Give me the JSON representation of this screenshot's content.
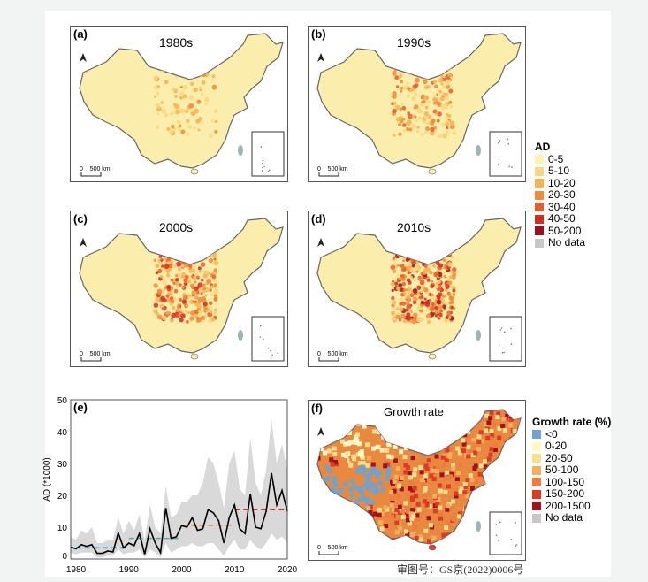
{
  "panels": [
    {
      "label": "(a)",
      "title": "1980s",
      "scale": "0    500 km",
      "level": 1
    },
    {
      "label": "(b)",
      "title": "1990s",
      "scale": "0    500 km",
      "level": 2
    },
    {
      "label": "(c)",
      "title": "2000s",
      "scale": "0    500 km",
      "level": 3
    },
    {
      "label": "(d)",
      "title": "2010s",
      "scale": "0    500 km",
      "level": 4
    }
  ],
  "growth_panel": {
    "label": "(f)",
    "title": "Growth rate",
    "scale": "0    500 km"
  },
  "ad_legend": {
    "title": "AD",
    "items": [
      {
        "label": "0-5",
        "color": "#fdf3b5"
      },
      {
        "label": "5-10",
        "color": "#f9d77f"
      },
      {
        "label": "10-20",
        "color": "#f6b351"
      },
      {
        "label": "20-30",
        "color": "#f18a3b"
      },
      {
        "label": "30-40",
        "color": "#ea5a2c"
      },
      {
        "label": "40-50",
        "color": "#d42d20"
      },
      {
        "label": "50-200",
        "color": "#a10f1c"
      },
      {
        "label": "No data",
        "color": "#c8c8c8"
      }
    ]
  },
  "growth_legend": {
    "title": "Growth rate (%)",
    "items": [
      {
        "label": "<0",
        "color": "#6fa3cf"
      },
      {
        "label": "0-20",
        "color": "#fff7c4"
      },
      {
        "label": "20-50",
        "color": "#fadf8c"
      },
      {
        "label": "50-100",
        "color": "#f6ae5c"
      },
      {
        "label": "100-150",
        "color": "#ef7b43"
      },
      {
        "label": "150-200",
        "color": "#da3c26"
      },
      {
        "label": "200-1500",
        "color": "#a3121c"
      },
      {
        "label": "No data",
        "color": "#c8c8c8"
      }
    ]
  },
  "chart_data": {
    "type": "line",
    "panel_label": "(e)",
    "ylabel": "AD (*1000)",
    "xlabel": "",
    "xlim": [
      1979,
      2020
    ],
    "ylim": [
      0,
      50
    ],
    "xticks": [
      1980,
      1990,
      2000,
      2010,
      2020
    ],
    "yticks": [
      0,
      10,
      20,
      30,
      40,
      50
    ],
    "x": [
      1979,
      1980,
      1981,
      1982,
      1983,
      1984,
      1985,
      1986,
      1987,
      1988,
      1989,
      1990,
      1991,
      1992,
      1993,
      1994,
      1995,
      1996,
      1997,
      1998,
      1999,
      2000,
      2001,
      2002,
      2003,
      2004,
      2005,
      2006,
      2007,
      2008,
      2009,
      2010,
      2011,
      2012,
      2013,
      2014,
      2015,
      2016,
      2017,
      2018,
      2019,
      2020
    ],
    "series": [
      {
        "name": "mean",
        "color": "#000000",
        "values": [
          3.8,
          3.2,
          4.5,
          4,
          4.5,
          1.8,
          1.8,
          2.5,
          2.2,
          8.2,
          3.5,
          5,
          4.2,
          8,
          1.5,
          9.5,
          5,
          2,
          16,
          6.5,
          7,
          10.5,
          10,
          13,
          9,
          9.5,
          15.5,
          14.5,
          12,
          5,
          13,
          17,
          9.5,
          8,
          20.5,
          10,
          9.5,
          15,
          27,
          17,
          21.5,
          15
        ]
      },
      {
        "name": "upper",
        "color": "#d9d9d9",
        "values": [
          7,
          6,
          9,
          8,
          10,
          5,
          5,
          6,
          6,
          13,
          8,
          12,
          9,
          14,
          6,
          17,
          10,
          8,
          23,
          13,
          14,
          18,
          18,
          20,
          20,
          24,
          32,
          30,
          24,
          16,
          30,
          34,
          22,
          20,
          38,
          24,
          20,
          28,
          44,
          30,
          36,
          28
        ]
      },
      {
        "name": "lower",
        "color": "#d9d9d9",
        "values": [
          2,
          1.5,
          2,
          2,
          2,
          0.5,
          0.5,
          1,
          1,
          3,
          1.5,
          2,
          2,
          3,
          0.5,
          3,
          2,
          0.5,
          5,
          2,
          3,
          4,
          4,
          5,
          4,
          4,
          5,
          5,
          3,
          1,
          4,
          6,
          3,
          3,
          6,
          4,
          3,
          5,
          8,
          6,
          7,
          5
        ]
      }
    ],
    "decadal_means": [
      {
        "from": 1980,
        "to": 1990,
        "value": 3.5,
        "color": "#3a7fb5"
      },
      {
        "from": 1990,
        "to": 2000,
        "value": 6.5,
        "color": "#5aa8a0"
      },
      {
        "from": 2000,
        "to": 2010,
        "value": 10.5,
        "color": "#f0a04b"
      },
      {
        "from": 2010,
        "to": 2020,
        "value": 15.5,
        "color": "#d7302b"
      }
    ]
  },
  "footer": "审图号：GS京(2022)0006号"
}
